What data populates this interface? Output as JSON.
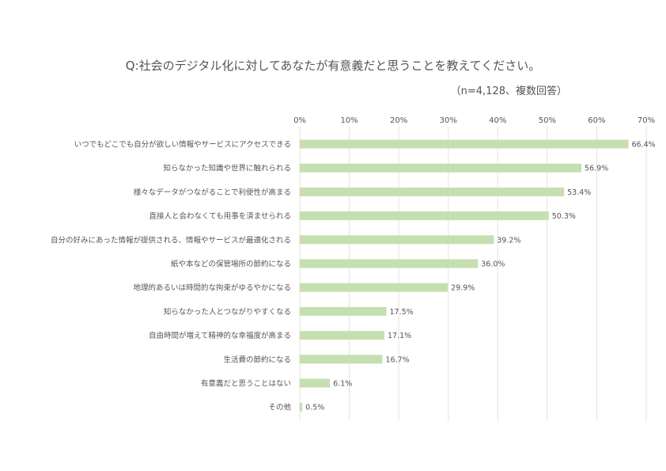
{
  "chart_data": {
    "type": "bar",
    "orientation": "horizontal",
    "title": "Q:社会のデジタル化に対してあなたが有意義だと思うことを教えてください。",
    "subtitle": "（n=4,128、複数回答）",
    "categories": [
      "いつでもどこでも自分が欲しい情報やサービスにアクセスできる",
      "知らなかった知識や世界に触れられる",
      "様々なデータがつながることで利便性が高まる",
      "直接人と会わなくても用事を済ませられる",
      "自分の好みにあった情報が提供される、情報やサービスが最適化される",
      "紙や本などの保管場所の節約になる",
      "地理的あるいは時間的な拘束がゆるやかになる",
      "知らなかった人とつながりやすくなる",
      "自由時間が増えて精神的な幸福度が高まる",
      "生活費の節約になる",
      "有意義だと思うことはない",
      "その他"
    ],
    "values": [
      66.4,
      56.9,
      53.4,
      50.3,
      39.2,
      36.0,
      29.9,
      17.5,
      17.1,
      16.7,
      6.1,
      0.5
    ],
    "value_labels": [
      "66.4%",
      "56.9%",
      "53.4%",
      "50.3%",
      "39.2%",
      "36.0%",
      "29.9%",
      "17.5%",
      "17.1%",
      "16.7%",
      "6.1%",
      "0.5%"
    ],
    "xticks": [
      "0%",
      "10%",
      "20%",
      "30%",
      "40%",
      "50%",
      "60%",
      "70%"
    ],
    "xlim": [
      0,
      70
    ],
    "grid": true,
    "bar_color": "#c5dfb1",
    "grid_color": "#e3e3e3",
    "text_color": "#555555"
  }
}
